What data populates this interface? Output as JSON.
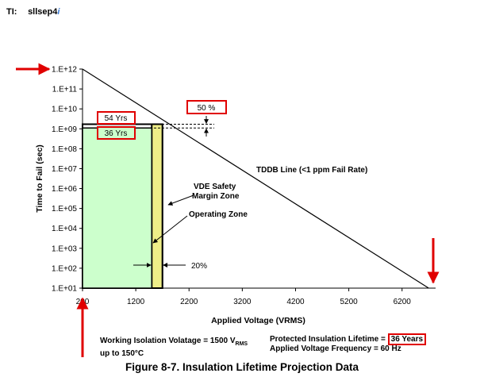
{
  "header": {
    "ti_label": "TI:",
    "doc_id": "sllsep4",
    "doc_id_suffix": "i"
  },
  "chart_data": {
    "type": "line",
    "title": "",
    "xlabel": "Applied Voltage (VRMS)",
    "ylabel": "Time to Fail (sec)",
    "y_scale": "log",
    "xlim": [
      200,
      6800
    ],
    "ylim": [
      10,
      1000000000000.0
    ],
    "x_ticks": [
      "200",
      "1200",
      "2200",
      "3200",
      "4200",
      "5200",
      "6200"
    ],
    "y_ticks": [
      "1.E+01",
      "1.E+02",
      "1.E+03",
      "1.E+04",
      "1.E+05",
      "1.E+06",
      "1.E+07",
      "1.E+08",
      "1.E+09",
      "1.E+10",
      "1.E+11",
      "1.E+12"
    ],
    "series": [
      {
        "name": "TDDB Line (<1 ppm Fail Rate)",
        "points": [
          [
            200,
            1000000000000.0
          ],
          [
            6700,
            10
          ]
        ]
      }
    ],
    "operating_zone": {
      "x_max": 1500,
      "y_max": 1100000000.0
    },
    "vde_safety_margin_zone": {
      "x_min": 1500,
      "x_max": 1700,
      "y_max": 1700000000.0
    },
    "annotations": {
      "tddb_label": "TDDB Line (<1 ppm Fail Rate)",
      "vde_label_line1": "VDE Safety",
      "vde_label_line2": "Margin Zone",
      "operating_label": "Operating Zone",
      "pct20_label": "20%",
      "pct50_label": "50 %",
      "yrs54_label": "54 Yrs",
      "yrs36_label": "36 Yrs"
    },
    "colors": {
      "operating_fill": "#ccffcc",
      "margin_fill": "#eeee88",
      "highlight": "#e00000"
    }
  },
  "footer": {
    "working_line1_prefix": "Working Isolation Volatage = 1500 V",
    "working_line1_sub": "RMS",
    "working_line2": "up to 150°C",
    "protected_prefix": "Protected Insulation Lifetime = ",
    "protected_value": "36 Years",
    "frequency": "Applied Voltage Frequency = 60 Hz"
  },
  "caption": "Figure 8-7. Insulation Lifetime Projection Data"
}
